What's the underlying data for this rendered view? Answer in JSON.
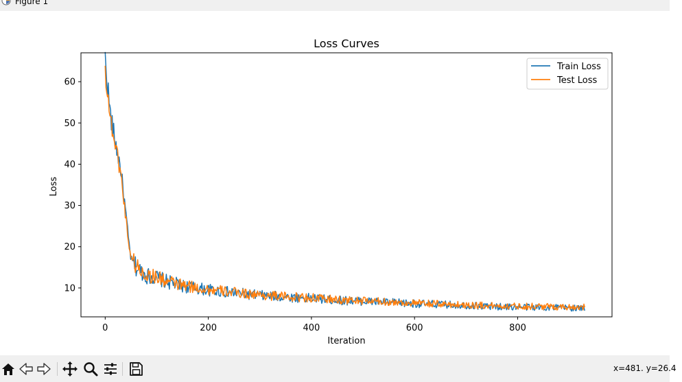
{
  "window": {
    "title": "Figure 1",
    "minimize_icon": "minimize-icon",
    "maximize_icon": "maximize-icon",
    "close_icon": "close-icon"
  },
  "toolbar": {
    "tools": [
      "home-icon",
      "back-arrow-icon",
      "forward-arrow-icon",
      "pan-icon",
      "zoom-icon",
      "configure-subplots-icon",
      "save-icon"
    ],
    "coords": "x=481. y=26.4"
  },
  "chart_data": {
    "type": "line",
    "title": "Loss Curves",
    "xlabel": "Iteration",
    "ylabel": "Loss",
    "xlim": [
      -47,
      983
    ],
    "ylim": [
      3,
      67
    ],
    "xticks": [
      0,
      200,
      400,
      600,
      800
    ],
    "yticks": [
      10,
      20,
      30,
      40,
      50,
      60
    ],
    "grid": false,
    "legend": "top-right",
    "series": [
      {
        "name": "Train Loss",
        "color": "#1f77b4",
        "x": [
          0,
          10,
          20,
          30,
          40,
          45,
          50,
          60,
          70,
          80,
          100,
          120,
          150,
          200,
          250,
          300,
          350,
          400,
          450,
          500,
          550,
          600,
          650,
          700,
          750,
          800,
          850,
          900,
          930
        ],
        "y": [
          65.5,
          52,
          45,
          39,
          28,
          22,
          17,
          15,
          14,
          13,
          12.5,
          11.5,
          10.5,
          9.5,
          8.8,
          8.2,
          7.8,
          7.5,
          7,
          6.8,
          6.5,
          6.2,
          6,
          5.8,
          5.5,
          5.4,
          5.3,
          5.2,
          5.0
        ],
        "noise": 1.3
      },
      {
        "name": "Test Loss",
        "color": "#ff7f0e",
        "x": [
          0,
          10,
          20,
          30,
          40,
          45,
          50,
          60,
          70,
          80,
          100,
          120,
          150,
          200,
          250,
          300,
          350,
          400,
          450,
          500,
          550,
          600,
          650,
          700,
          750,
          800,
          850,
          900,
          930
        ],
        "y": [
          63,
          51,
          44.5,
          38,
          27,
          21.5,
          17.5,
          15.5,
          14,
          13.2,
          12.6,
          11.6,
          10.6,
          9.6,
          8.9,
          8.3,
          7.9,
          7.6,
          7.1,
          6.9,
          6.6,
          6.3,
          6.1,
          5.9,
          5.7,
          5.6,
          5.5,
          5.4,
          5.4
        ],
        "noise": 1.2
      }
    ]
  }
}
